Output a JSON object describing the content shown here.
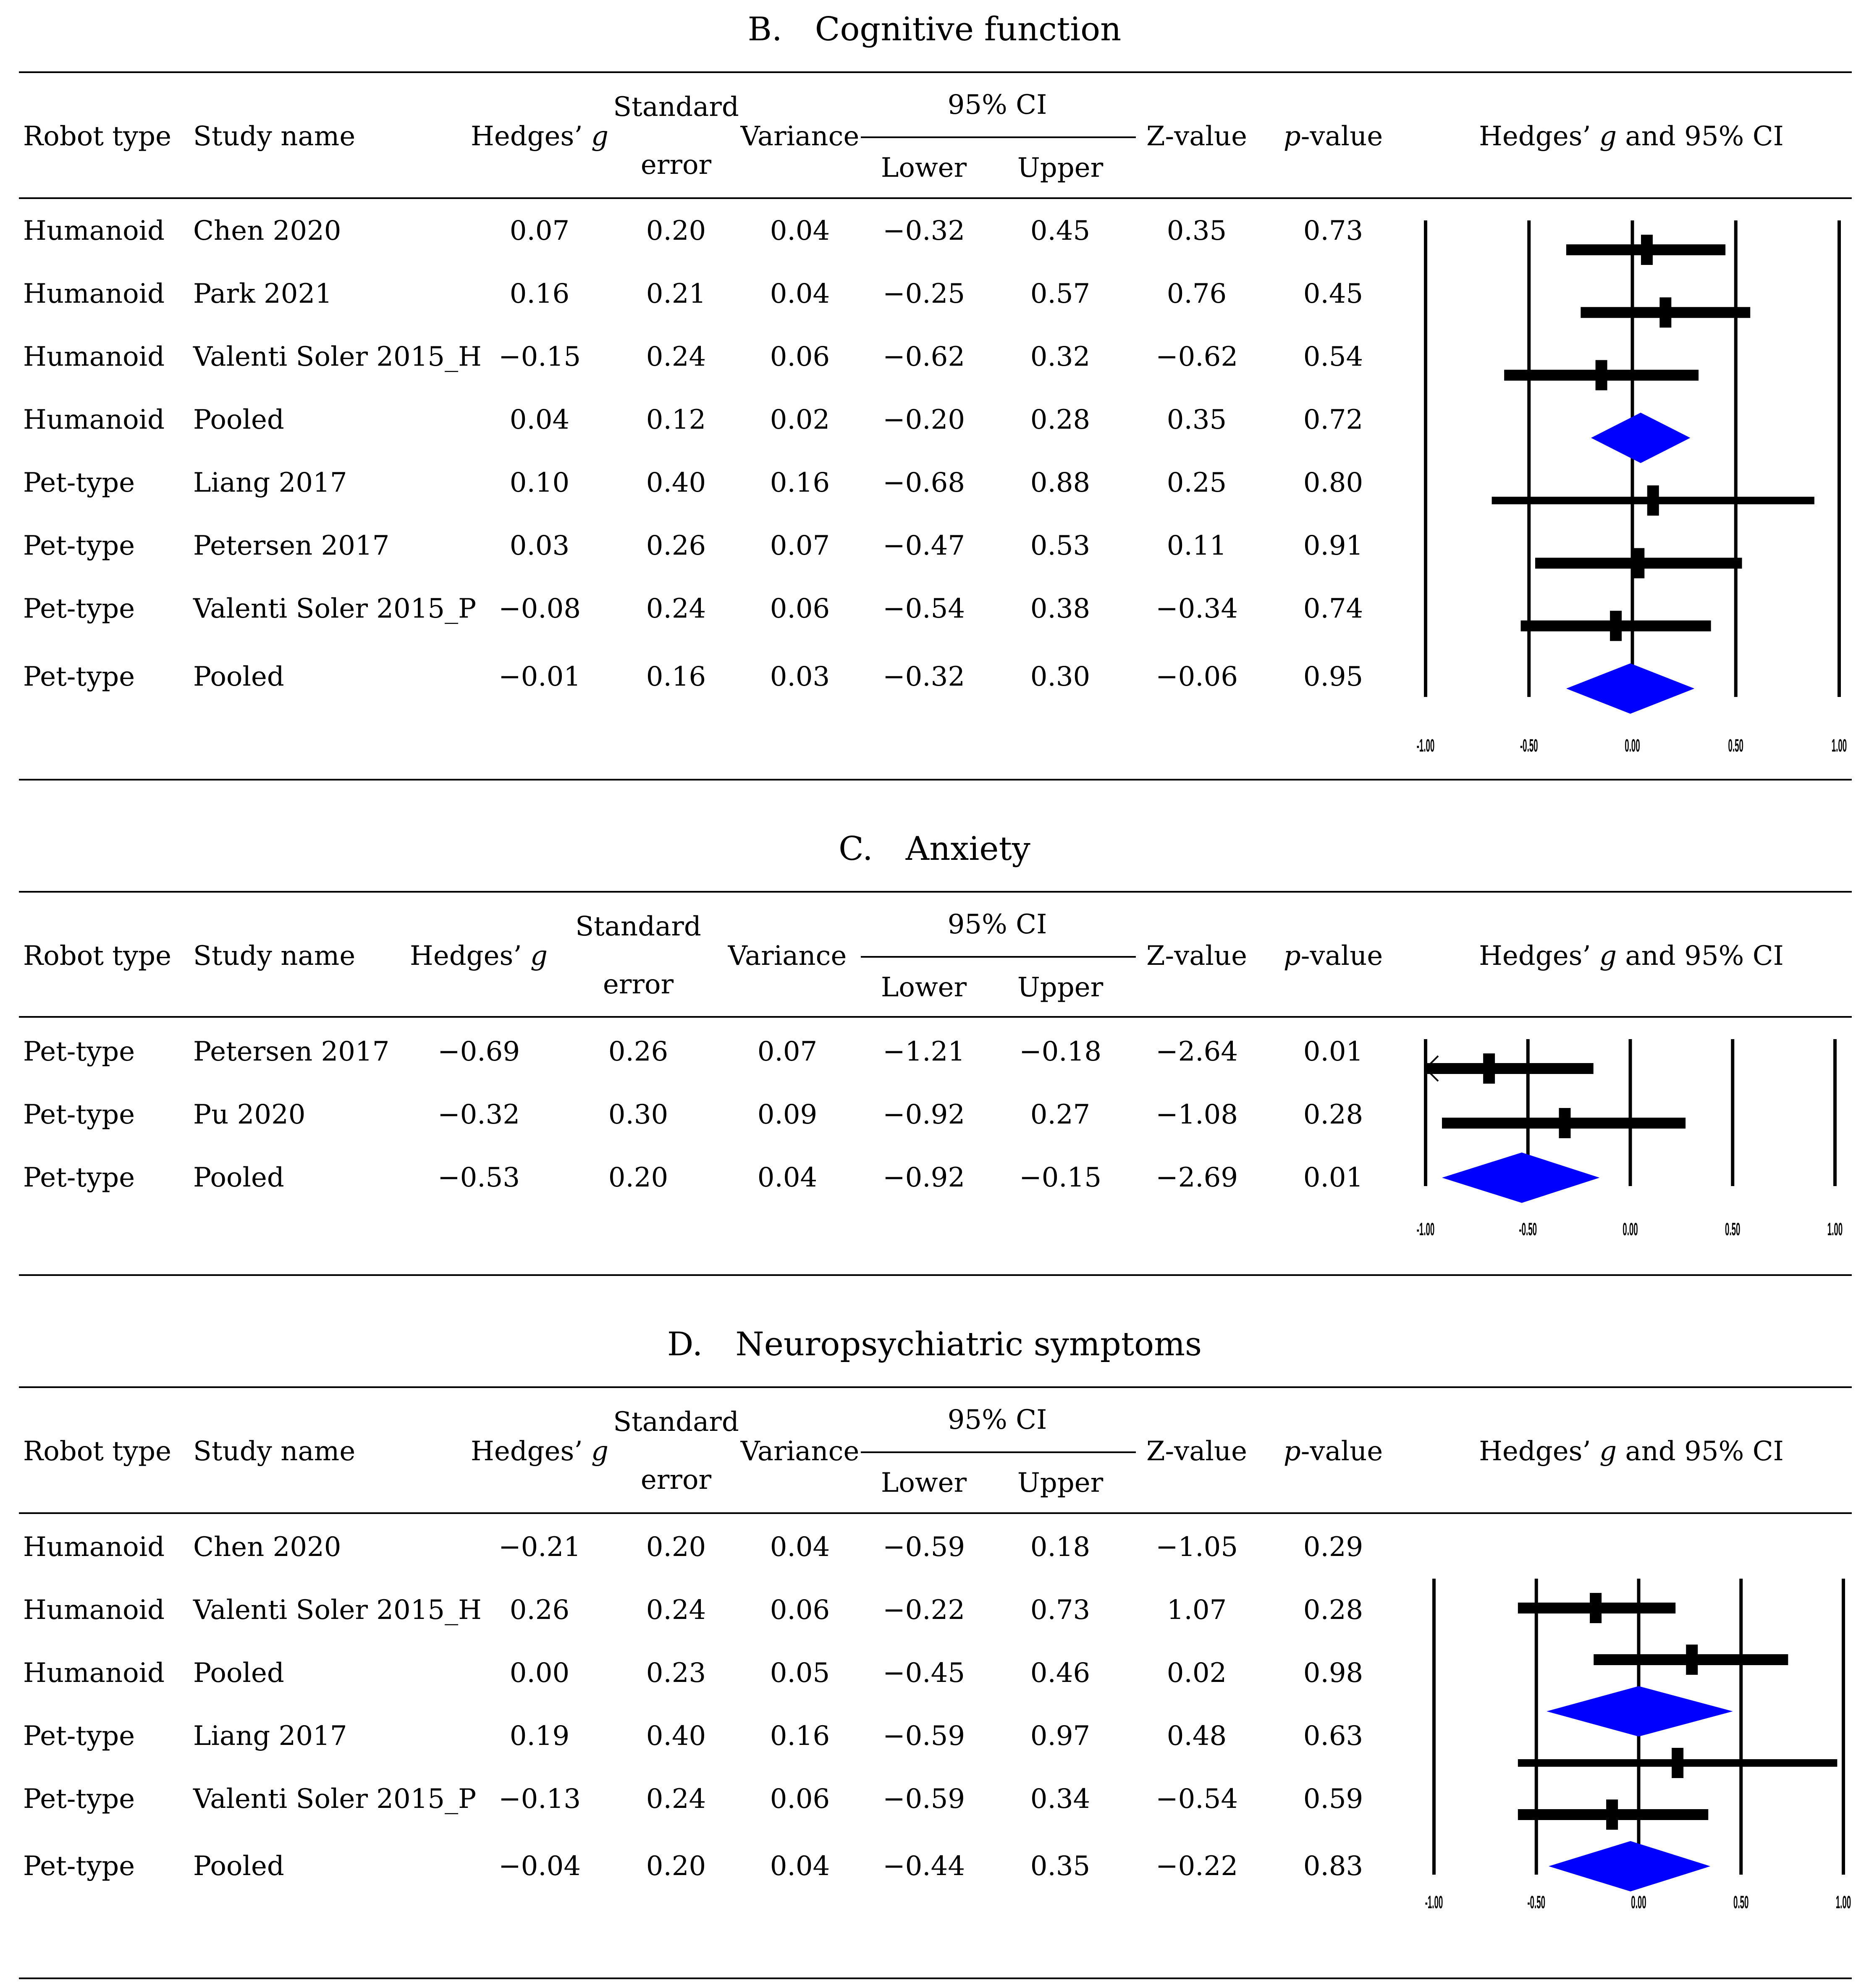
{
  "colors": {
    "diamond": "#0000FF",
    "ink": "#000000"
  },
  "headers": {
    "robot_type": "Robot type",
    "study_name": "Study name",
    "hedges": "Hedges’",
    "hedges_g": "g",
    "se_top": "Standard",
    "se_bottom": "error",
    "variance": "Variance",
    "ci": "95% CI",
    "lower": "Lower",
    "upper": "Upper",
    "z": "Z-value",
    "p_italic": "p",
    "p_rest": "-value",
    "plot_pre": "Hedges’",
    "plot_g": "g",
    "plot_post": "and 95% CI"
  },
  "sections": [
    {
      "title": "B. Cognitive function",
      "rows": [
        [
          "Humanoid",
          "Chen 2020",
          "0.07",
          "0.20",
          "0.04",
          "−0.32",
          "0.45",
          "0.35",
          "0.73"
        ],
        [
          "Humanoid",
          "Park 2021",
          "0.16",
          "0.21",
          "0.04",
          "−0.25",
          "0.57",
          "0.76",
          "0.45"
        ],
        [
          "Humanoid",
          "Valenti Soler 2015_H",
          "−0.15",
          "0.24",
          "0.06",
          "−0.62",
          "0.32",
          "−0.62",
          "0.54"
        ],
        [
          "Humanoid",
          "Pooled",
          "0.04",
          "0.12",
          "0.02",
          "−0.20",
          "0.28",
          "0.35",
          "0.72"
        ],
        [
          "Pet-type",
          "Liang 2017",
          "0.10",
          "0.40",
          "0.16",
          "−0.68",
          "0.88",
          "0.25",
          "0.80"
        ],
        [
          "Pet-type",
          "Petersen 2017",
          "0.03",
          "0.26",
          "0.07",
          "−0.47",
          "0.53",
          "0.11",
          "0.91"
        ],
        [
          "Pet-type",
          "Valenti Soler 2015_P",
          "−0.08",
          "0.24",
          "0.06",
          "−0.54",
          "0.38",
          "−0.34",
          "0.74"
        ],
        [
          "Pet-type",
          "Pooled",
          "−0.01",
          "0.16",
          "0.03",
          "−0.32",
          "0.30",
          "−0.06",
          "0.95"
        ]
      ]
    },
    {
      "title": "C. Anxiety",
      "rows": [
        [
          "Pet-type",
          "Petersen 2017",
          "−0.69",
          "0.26",
          "0.07",
          "−1.21",
          "−0.18",
          "−2.64",
          "0.01"
        ],
        [
          "Pet-type",
          "Pu 2020",
          "−0.32",
          "0.30",
          "0.09",
          "−0.92",
          "0.27",
          "−1.08",
          "0.28"
        ],
        [
          "Pet-type",
          "Pooled",
          "−0.53",
          "0.20",
          "0.04",
          "−0.92",
          "−0.15",
          "−2.69",
          "0.01"
        ]
      ]
    },
    {
      "title": "D. Neuropsychiatric symptoms",
      "rows": [
        [
          "Humanoid",
          "Chen 2020",
          "−0.21",
          "0.20",
          "0.04",
          "−0.59",
          "0.18",
          "−1.05",
          "0.29"
        ],
        [
          "Humanoid",
          "Valenti Soler 2015_H",
          "0.26",
          "0.24",
          "0.06",
          "−0.22",
          "0.73",
          "1.07",
          "0.28"
        ],
        [
          "Humanoid",
          "Pooled",
          "0.00",
          "0.23",
          "0.05",
          "−0.45",
          "0.46",
          "0.02",
          "0.98"
        ],
        [
          "Pet-type",
          "Liang 2017",
          "0.19",
          "0.40",
          "0.16",
          "−0.59",
          "0.97",
          "0.48",
          "0.63"
        ],
        [
          "Pet-type",
          "Valenti Soler 2015_P",
          "−0.13",
          "0.24",
          "0.06",
          "−0.59",
          "0.34",
          "−0.54",
          "0.59"
        ],
        [
          "Pet-type",
          "Pooled",
          "−0.04",
          "0.20",
          "0.04",
          "−0.44",
          "0.35",
          "−0.22",
          "0.83"
        ]
      ]
    }
  ],
  "chart_data": [
    {
      "type": "forest",
      "title": "B. Cognitive function",
      "xlim": [
        -1.0,
        1.0
      ],
      "xticks": [
        "-1.00",
        "-0.50",
        "0.00",
        "0.50",
        "1.00"
      ],
      "ylabel": "Hedges’ g and 95% CI",
      "points": [
        {
          "label": "Chen 2020",
          "g": 0.07,
          "lower": -0.32,
          "upper": 0.45,
          "pooled": false
        },
        {
          "label": "Park 2021",
          "g": 0.16,
          "lower": -0.25,
          "upper": 0.57,
          "pooled": false
        },
        {
          "label": "Valenti Soler 2015_H",
          "g": -0.15,
          "lower": -0.62,
          "upper": 0.32,
          "pooled": false
        },
        {
          "label": "Pooled",
          "g": 0.04,
          "lower": -0.2,
          "upper": 0.28,
          "pooled": true
        },
        {
          "label": "Liang 2017",
          "g": 0.1,
          "lower": -0.68,
          "upper": 0.88,
          "pooled": false
        },
        {
          "label": "Petersen 2017",
          "g": 0.03,
          "lower": -0.47,
          "upper": 0.53,
          "pooled": false
        },
        {
          "label": "Valenti Soler 2015_P",
          "g": -0.08,
          "lower": -0.54,
          "upper": 0.38,
          "pooled": false
        },
        {
          "label": "Pooled",
          "g": -0.01,
          "lower": -0.32,
          "upper": 0.3,
          "pooled": true
        }
      ]
    },
    {
      "type": "forest",
      "title": "C. Anxiety",
      "xlim": [
        -1.0,
        1.0
      ],
      "xticks": [
        "-1.00",
        "-0.50",
        "0.00",
        "0.50",
        "1.00"
      ],
      "ylabel": "Hedges’ g and 95% CI",
      "points": [
        {
          "label": "Petersen 2017",
          "g": -0.69,
          "lower": -1.21,
          "upper": -0.18,
          "pooled": false
        },
        {
          "label": "Pu 2020",
          "g": -0.32,
          "lower": -0.92,
          "upper": 0.27,
          "pooled": false
        },
        {
          "label": "Pooled",
          "g": -0.53,
          "lower": -0.92,
          "upper": -0.15,
          "pooled": true
        }
      ]
    },
    {
      "type": "forest",
      "title": "D. Neuropsychiatric symptoms",
      "xlim": [
        -1.0,
        1.0
      ],
      "xticks": [
        "-1.00",
        "-0.50",
        "0.00",
        "0.50",
        "1.00"
      ],
      "ylabel": "Hedges’ g and 95% CI",
      "points": [
        {
          "label": "Chen 2020",
          "g": -0.21,
          "lower": -0.59,
          "upper": 0.18,
          "pooled": false
        },
        {
          "label": "Valenti Soler 2015_H",
          "g": 0.26,
          "lower": -0.22,
          "upper": 0.73,
          "pooled": false
        },
        {
          "label": "Pooled",
          "g": 0.0,
          "lower": -0.45,
          "upper": 0.46,
          "pooled": true
        },
        {
          "label": "Liang 2017",
          "g": 0.19,
          "lower": -0.59,
          "upper": 0.97,
          "pooled": false
        },
        {
          "label": "Valenti Soler 2015_P",
          "g": -0.13,
          "lower": -0.59,
          "upper": 0.34,
          "pooled": false
        },
        {
          "label": "Pooled",
          "g": -0.04,
          "lower": -0.44,
          "upper": 0.35,
          "pooled": true
        }
      ]
    }
  ]
}
